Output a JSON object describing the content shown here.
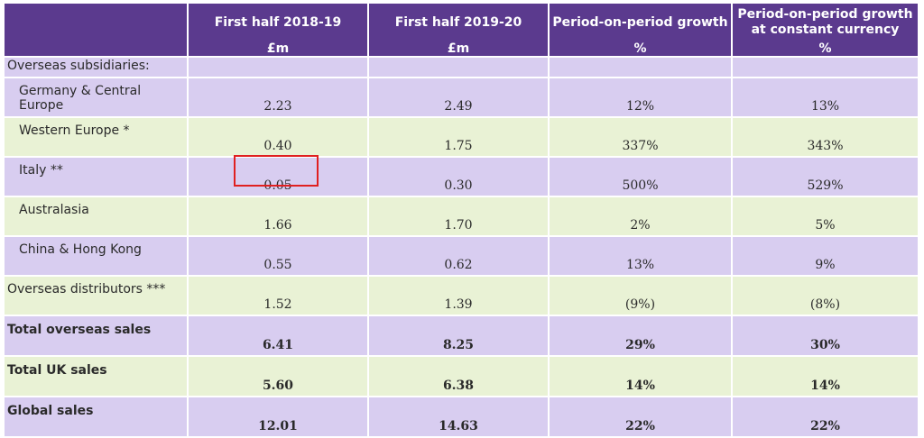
{
  "header": {
    "columns": [
      {
        "title": "",
        "unit": ""
      },
      {
        "title": "First half 2018-19",
        "unit": "£m"
      },
      {
        "title": "First half 2019-20",
        "unit": "£m"
      },
      {
        "title": "Period-on-period growth",
        "unit": "%"
      },
      {
        "title": "Period-on-period growth at constant currency",
        "unit": "%"
      }
    ]
  },
  "rows": [
    {
      "label": "Overseas subsidiaries:",
      "values": [
        "",
        "",
        "",
        ""
      ]
    },
    {
      "label": "Germany & Central Europe",
      "values": [
        "2.23",
        "2.49",
        "12%",
        "13%"
      ]
    },
    {
      "label": "Western Europe *",
      "values": [
        "0.40",
        "1.75",
        "337%",
        "343%"
      ]
    },
    {
      "label": "Italy **",
      "values": [
        "0.05",
        "0.30",
        "500%",
        "529%"
      ]
    },
    {
      "label": "Australasia",
      "values": [
        "1.66",
        "1.70",
        "2%",
        "5%"
      ]
    },
    {
      "label": "China & Hong Kong",
      "values": [
        "0.55",
        "0.62",
        "13%",
        "9%"
      ]
    },
    {
      "label": "Overseas distributors ***",
      "values": [
        "1.52",
        "1.39",
        "(9%)",
        "(8%)"
      ]
    },
    {
      "label": "Total overseas sales",
      "values": [
        "6.41",
        "8.25",
        "29%",
        "30%"
      ]
    },
    {
      "label": "Total UK sales",
      "values": [
        "5.60",
        "6.38",
        "14%",
        "14%"
      ]
    },
    {
      "label": "Global sales",
      "values": [
        "12.01",
        "14.63",
        "22%",
        "22%"
      ]
    }
  ],
  "colors": {
    "header_bg": "#5b3a8e",
    "row_lavender": "#d8cdf0",
    "row_green": "#e9f2d5",
    "highlight_box": "#e02020"
  }
}
